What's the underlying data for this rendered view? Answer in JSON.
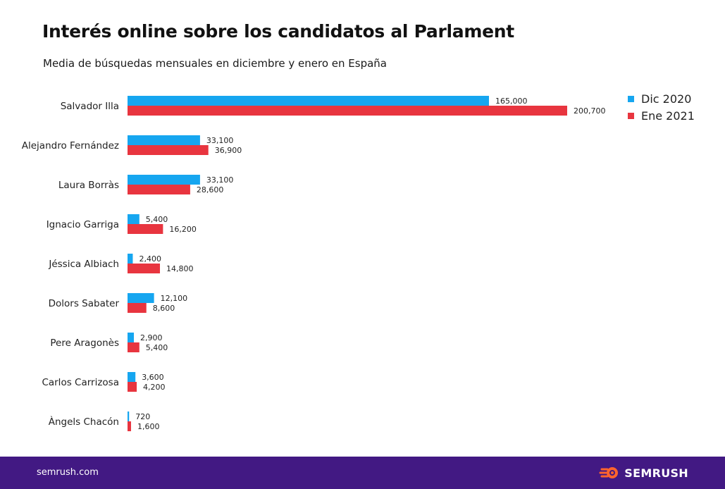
{
  "title": "Interés online sobre los candidatos al Parlament",
  "subtitle": "Media de búsquedas mensuales en diciembre y enero en España",
  "colors": {
    "dic": "#16a6f0",
    "ene": "#e8353f",
    "footer": "#421983",
    "brand_accent": "#ff642d"
  },
  "legend": {
    "dic_label": "Dic 2020",
    "ene_label": "Ene 2021"
  },
  "footer": {
    "site": "semrush.com",
    "brand": "SEMRUSH",
    "brand_icon": "semrush-flame-icon"
  },
  "chart_data": {
    "type": "bar",
    "orientation": "horizontal",
    "categories": [
      "Salvador Illa",
      "Alejandro Fernández",
      "Laura Borràs",
      "Ignacio Garriga",
      "Jéssica Albiach",
      "Dolors Sabater",
      "Pere Aragonès",
      "Carlos Carrizosa",
      "Àngels Chacón"
    ],
    "series": [
      {
        "name": "Dic 2020",
        "values": [
          165000,
          33100,
          33100,
          5400,
          2400,
          12100,
          2900,
          3600,
          720
        ],
        "labels": [
          "165,000",
          "33,100",
          "33,100",
          "5,400",
          "2,400",
          "12,100",
          "2,900",
          "3,600",
          "720"
        ]
      },
      {
        "name": "Ene 2021",
        "values": [
          200700,
          36900,
          28600,
          16200,
          14800,
          8600,
          5400,
          4200,
          1600
        ],
        "labels": [
          "200,700",
          "36,900",
          "28,600",
          "16,200",
          "14,800",
          "8,600",
          "5,400",
          "4,200",
          "1,600"
        ]
      }
    ],
    "xlim": [
      0,
      200700
    ],
    "legend_position": "top-right",
    "grid": false
  }
}
